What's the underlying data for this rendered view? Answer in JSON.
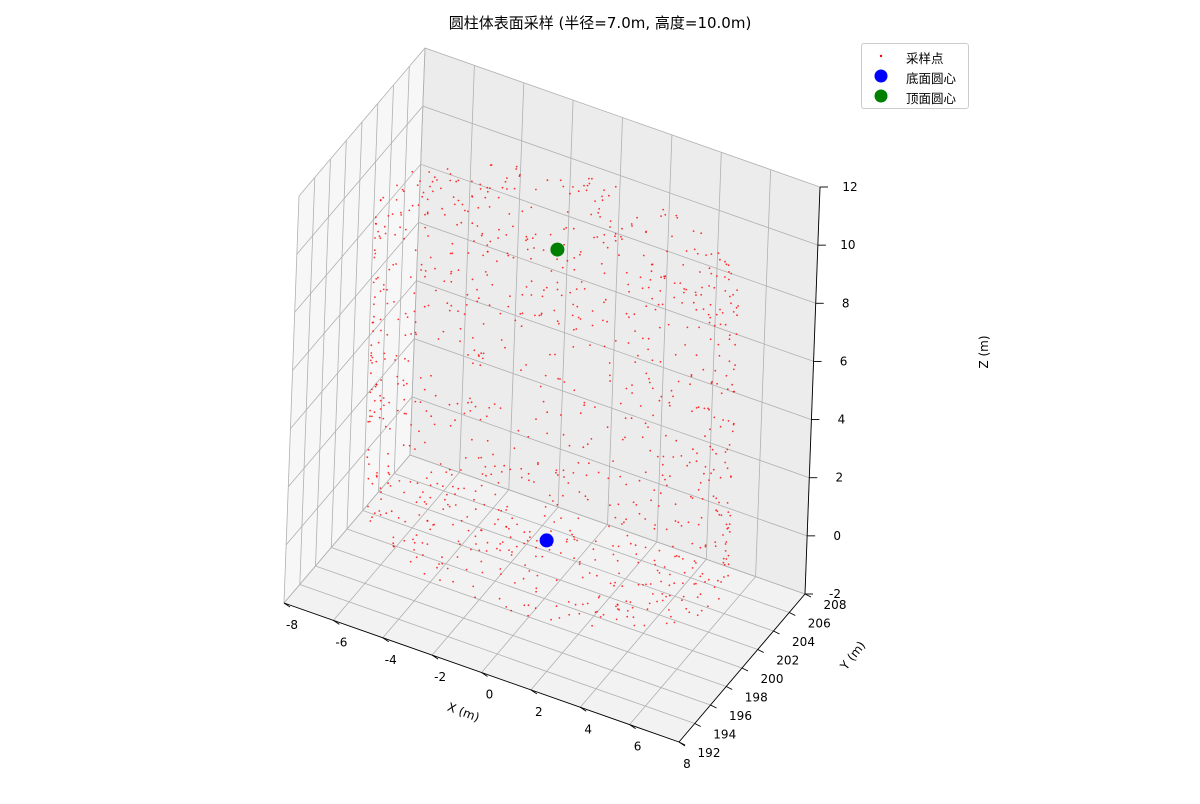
{
  "chart_data": {
    "type": "scatter",
    "title": "圆柱体表面采样 (半径=7.0m, 高度=10.0m)",
    "xlabel": "X (m)",
    "ylabel": "Y (m)",
    "zlabel": "Z (m)",
    "xlim": [
      -8,
      8
    ],
    "ylim": [
      192,
      208
    ],
    "zlim": [
      -2,
      12
    ],
    "x_ticks": [
      "-8",
      "-6",
      "-4",
      "-2",
      "0",
      "2",
      "4",
      "6",
      "8"
    ],
    "y_ticks": [
      "192",
      "194",
      "196",
      "198",
      "200",
      "202",
      "204",
      "206",
      "208"
    ],
    "z_ticks": [
      "-2",
      "0",
      "2",
      "4",
      "6",
      "8",
      "10",
      "12"
    ],
    "legend_position": "upper-right",
    "grid": true,
    "cylinder": {
      "radius": 7.0,
      "height": 10.0,
      "center_x": 0,
      "center_y": 200
    },
    "series": [
      {
        "name": "采样点",
        "marker": "dot",
        "color": "#ff0000",
        "count": 1000
      },
      {
        "name": "底面圆心",
        "marker": "circle",
        "color": "#0000ff",
        "points": [
          [
            0,
            200,
            0
          ]
        ]
      },
      {
        "name": "顶面圆心",
        "marker": "circle",
        "color": "#008000",
        "points": [
          [
            0,
            200,
            10
          ]
        ]
      }
    ]
  }
}
